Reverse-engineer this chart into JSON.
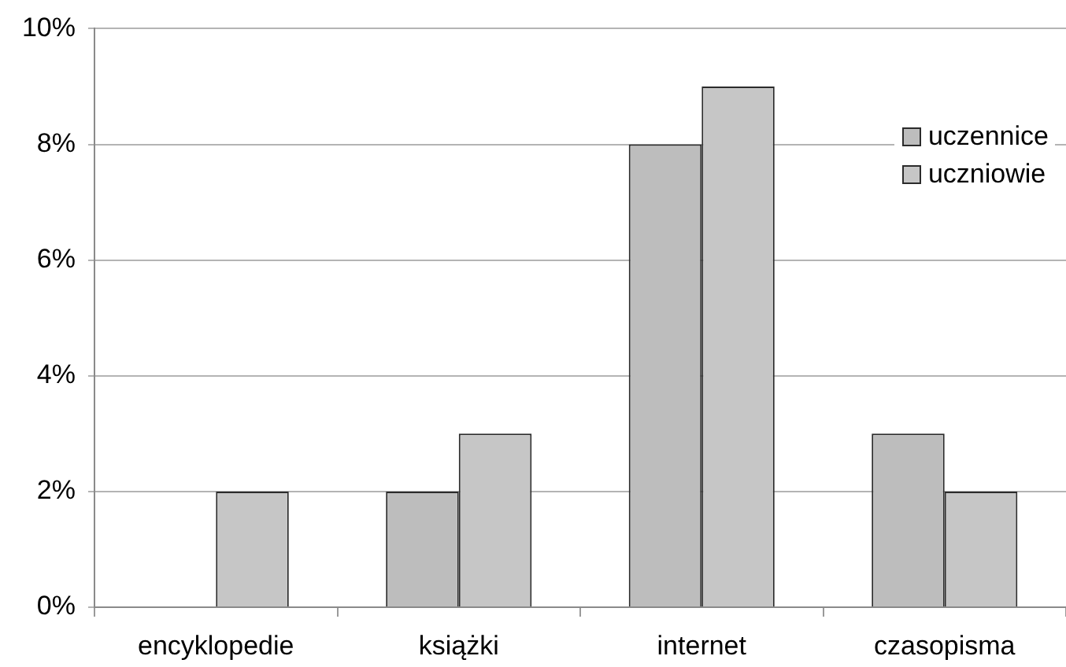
{
  "chart_data": {
    "type": "bar",
    "categories": [
      "encyklopedie",
      "książki",
      "internet",
      "czasopisma"
    ],
    "series": [
      {
        "name": "uczennice",
        "color": "#bdbdbd",
        "values": [
          0,
          2,
          8,
          3
        ]
      },
      {
        "name": "uczniowie",
        "color": "#c6c6c6",
        "values": [
          2,
          3,
          9,
          2
        ]
      }
    ],
    "ylim": [
      0,
      10
    ],
    "yticks": [
      {
        "value": 0,
        "label": "0%"
      },
      {
        "value": 2,
        "label": "2%"
      },
      {
        "value": 4,
        "label": "4%"
      },
      {
        "value": 6,
        "label": "6%"
      },
      {
        "value": 8,
        "label": "8%"
      },
      {
        "value": 10,
        "label": "10%"
      }
    ],
    "grid": "y",
    "legend": "top right"
  }
}
